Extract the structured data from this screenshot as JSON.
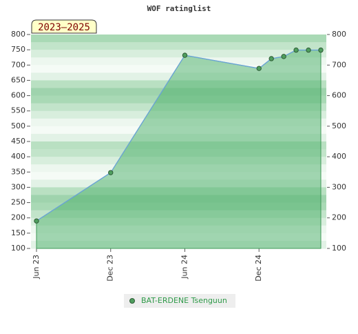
{
  "chart_data": {
    "type": "line",
    "title": "WOF ratinglist",
    "period_label": "2023–2025",
    "x": [
      "2023-06",
      "2023-12",
      "2024-06",
      "2024-12",
      "2025-01",
      "2025-02",
      "2025-03",
      "2025-04",
      "2025-05"
    ],
    "series": [
      {
        "name": "BAT-ERDENE Tsenguun",
        "color": "#6aa3d8",
        "values": [
          190,
          348,
          732,
          689,
          721,
          728,
          749,
          749,
          749
        ]
      }
    ],
    "xlim": [
      "2023-06",
      "2025-05"
    ],
    "xticks": [
      {
        "value": "2023-06",
        "label": "Jun 23"
      },
      {
        "value": "2023-12",
        "label": "Dec 23"
      },
      {
        "value": "2024-06",
        "label": "Jun 24"
      },
      {
        "value": "2024-12",
        "label": "Dec 24"
      }
    ],
    "ylim": [
      100,
      800
    ],
    "yticks": [
      100,
      150,
      200,
      250,
      300,
      350,
      400,
      450,
      500,
      550,
      600,
      650,
      700,
      750,
      800
    ],
    "y2lim": [
      100,
      800
    ],
    "y2ticks": [
      100,
      200,
      300,
      400,
      500,
      600,
      700,
      800
    ],
    "area_color": "#4caf6a",
    "marker_color": "#4f9e5e"
  }
}
